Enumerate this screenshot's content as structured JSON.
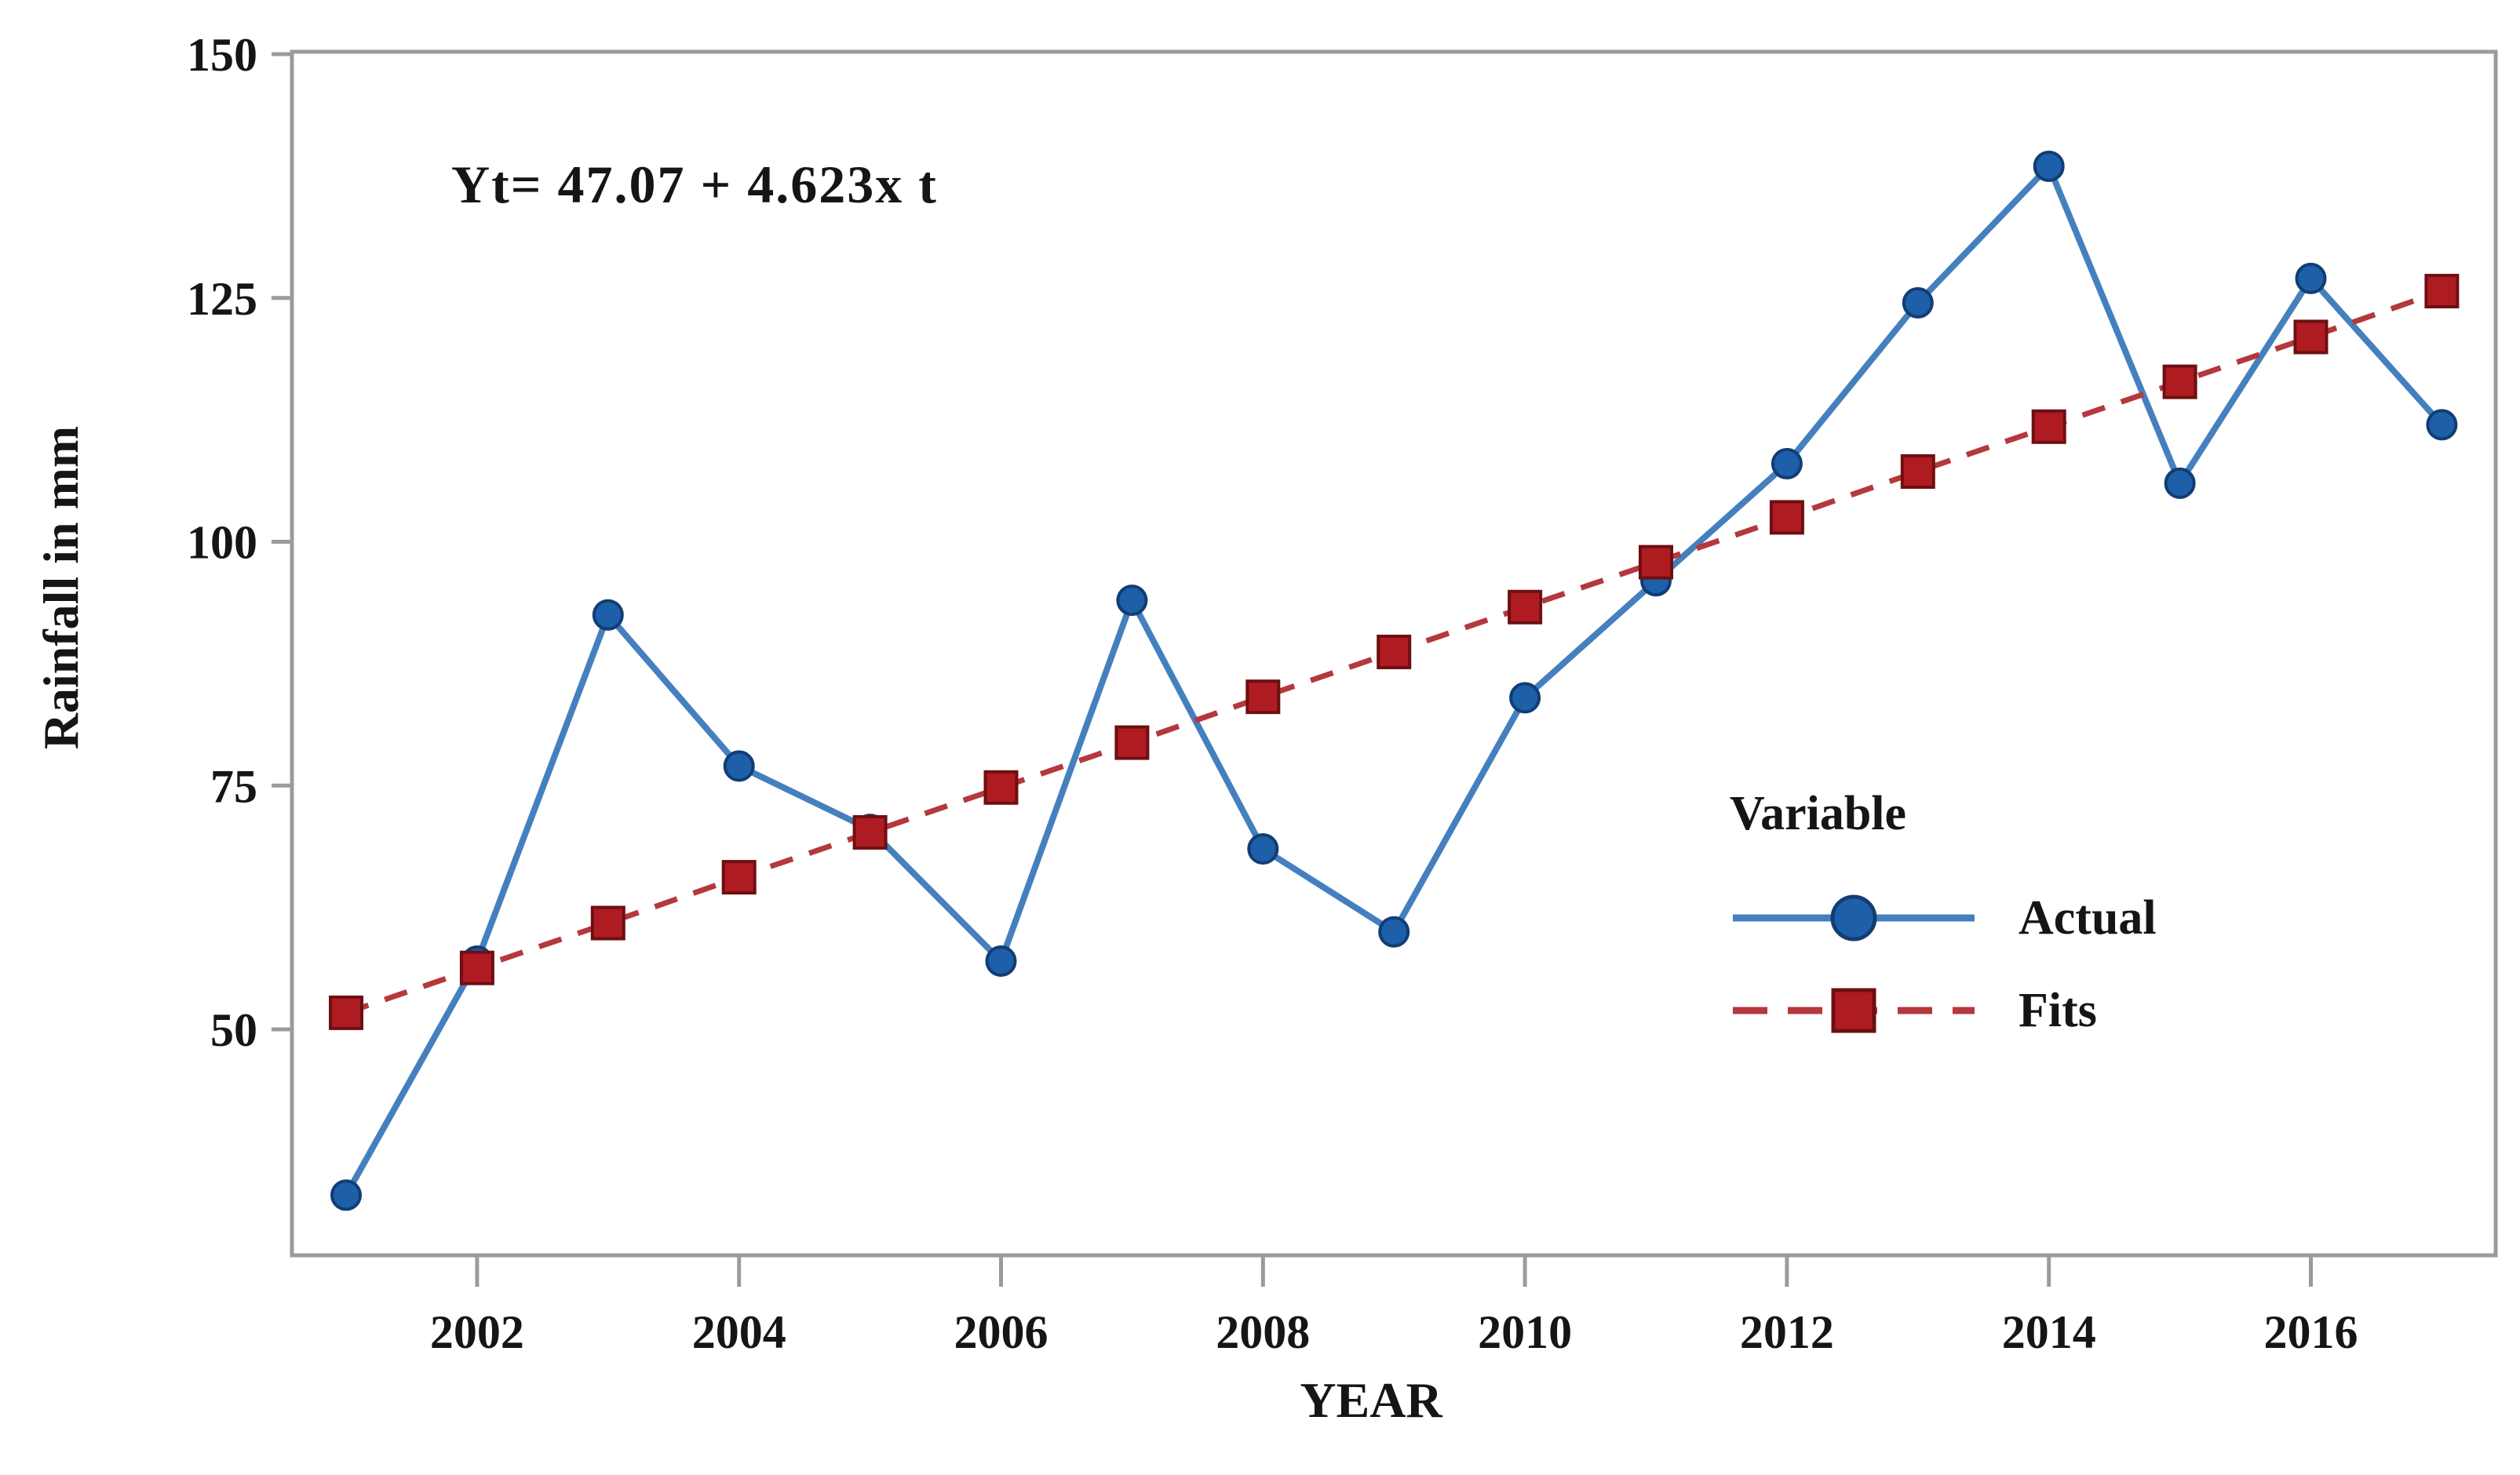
{
  "figure": {
    "equation_annotation": "Yt= 47.07 + 4.623x t",
    "x_axis_title": "YEAR",
    "y_axis_title": "Rainfall in mm",
    "legend": {
      "title": "Variable",
      "items": [
        {
          "label": "Actual",
          "marker": "circle-marker-icon",
          "line_style": "solid"
        },
        {
          "label": "Fits",
          "marker": "square-marker-icon",
          "line_style": "dashed"
        }
      ]
    },
    "colors": {
      "actual_line": "#4580be",
      "actual_marker_fill": "#1d5fa9",
      "actual_marker_stroke": "#123d73",
      "fits_line": "#b4383c",
      "fits_marker_fill": "#ae1c21",
      "fits_marker_stroke": "#6e0f12",
      "axis_frame": "#9b9b9b",
      "text": "#151515",
      "background": "#ffffff"
    }
  },
  "chart_data": {
    "type": "line",
    "title": "",
    "xlabel": "YEAR",
    "ylabel": "Rainfall in mm",
    "annotation": "Yt= 47.07 + 4.623x t",
    "x": [
      2001,
      2002,
      2003,
      2004,
      2005,
      2006,
      2007,
      2008,
      2009,
      2010,
      2011,
      2012,
      2013,
      2014,
      2015,
      2016,
      2017
    ],
    "series": [
      {
        "name": "Actual",
        "marker": "circle",
        "line_style": "solid",
        "values": [
          33,
          57,
          92.5,
          77,
          70.5,
          57,
          94,
          68.5,
          60,
          84,
          96,
          108,
          124.5,
          138.5,
          106,
          127,
          112
        ]
      },
      {
        "name": "Fits",
        "marker": "square",
        "line_style": "dashed",
        "values": [
          51.7,
          56.3,
          60.9,
          65.6,
          70.2,
          74.8,
          79.4,
          84.1,
          88.7,
          93.3,
          97.9,
          102.5,
          107.2,
          111.8,
          116.4,
          121.0,
          125.7
        ]
      }
    ],
    "yticks": [
      50,
      75,
      100,
      125,
      150
    ],
    "xticks": [
      2002,
      2004,
      2006,
      2008,
      2010,
      2012,
      2014,
      2016
    ],
    "ylim": [
      26.8,
      150.3
    ],
    "xlim": [
      2000.6,
      2017.4
    ],
    "grid": false,
    "legend_position": "inside-right",
    "legend_title": "Variable"
  }
}
